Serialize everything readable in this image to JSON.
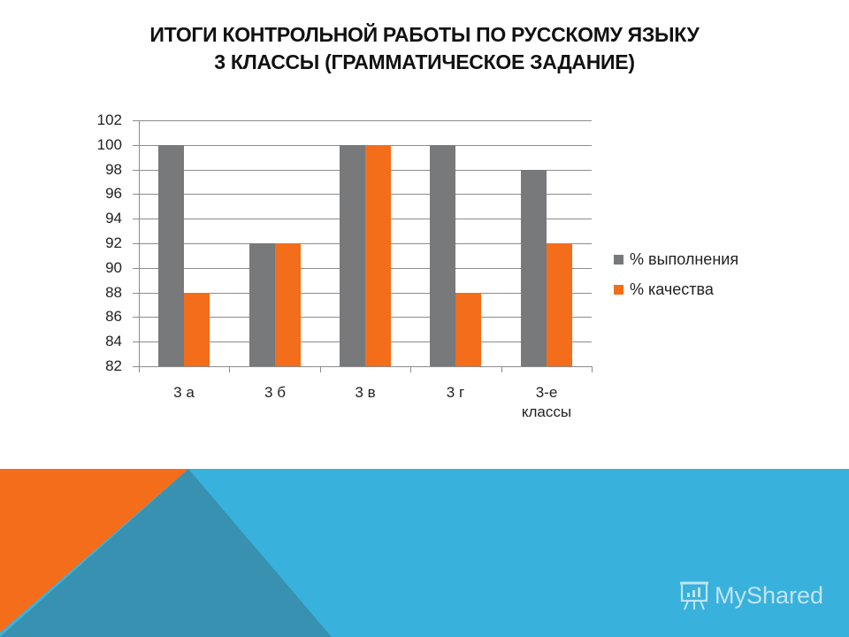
{
  "title": {
    "line1": "ИТОГИ КОНТРОЛЬНОЙ РАБОТЫ ПО РУССКОМУ ЯЗЫКУ",
    "line2": "3 КЛАССЫ (ГРАММАТИЧЕСКОЕ ЗАДАНИЕ)"
  },
  "colors": {
    "series_completion": "#77797b",
    "series_quality": "#f46d1b",
    "banner_light_blue": "#38b1dc",
    "banner_dark_teal": "#3891b0",
    "banner_orange": "#f46d1b"
  },
  "legend": {
    "items": [
      {
        "label": "% выполнения"
      },
      {
        "label": "% качества"
      }
    ]
  },
  "watermark": {
    "text": "MyShared",
    "icon": "presentation-board-icon"
  },
  "chart_data": {
    "type": "bar",
    "title": "ИТОГИ КОНТРОЛЬНОЙ РАБОТЫ ПО РУССКОМУ ЯЗЫКУ 3 КЛАССЫ (ГРАММАТИЧЕСКОЕ ЗАДАНИЕ)",
    "xlabel": "",
    "ylabel": "",
    "categories": [
      "3 а",
      "3 б",
      "3 в",
      "3 г",
      "3-е классы"
    ],
    "category_lines": [
      [
        "3 а"
      ],
      [
        "3 б"
      ],
      [
        "3 в"
      ],
      [
        "3 г"
      ],
      [
        "3-е",
        "классы"
      ]
    ],
    "series": [
      {
        "name": "% выполнения",
        "values": [
          100,
          92,
          100,
          100,
          98
        ]
      },
      {
        "name": "% качества",
        "values": [
          88,
          92,
          100,
          88,
          92
        ]
      }
    ],
    "ylim": [
      82,
      102
    ],
    "yticks": [
      102,
      100,
      98,
      96,
      94,
      92,
      90,
      88,
      86,
      84,
      82
    ],
    "grid": true,
    "legend_position": "right"
  }
}
